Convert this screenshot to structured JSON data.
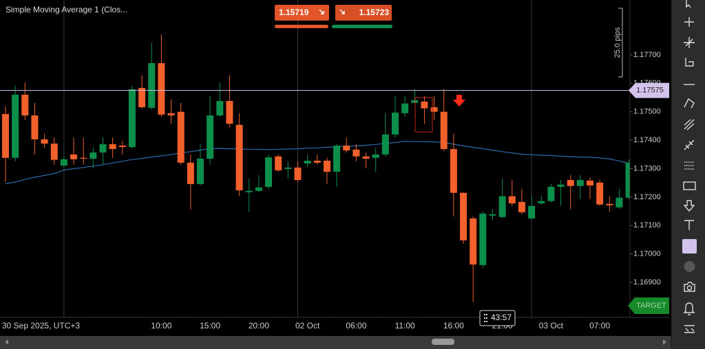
{
  "chart_data": {
    "type": "candlestick",
    "categories": [
      "30 Sep 2025, UTC+3",
      null,
      null,
      null,
      null,
      null,
      null,
      null,
      null,
      null,
      null,
      null,
      null,
      null,
      null,
      null,
      "10:00",
      null,
      null,
      null,
      null,
      "15:00",
      null,
      null,
      null,
      null,
      "20:00",
      null,
      null,
      null,
      null,
      "02 Oct",
      null,
      null,
      null,
      null,
      "06:00",
      null,
      null,
      null,
      null,
      "11:00",
      null,
      null,
      null,
      null,
      "16:00",
      null,
      null,
      null,
      null,
      "21:00",
      null,
      null,
      null,
      null,
      "03 Oct",
      null,
      null,
      null,
      null,
      "07:00",
      null,
      null,
      null
    ],
    "open": [
      1.17492,
      1.17338,
      1.1756,
      1.17487,
      1.17403,
      1.17388,
      1.17311,
      1.1735,
      1.17338,
      1.17335,
      1.17357,
      1.17386,
      1.17381,
      1.17376,
      1.17584,
      1.17514,
      1.17671,
      1.17495,
      1.175,
      1.17321,
      1.17246,
      1.17335,
      1.17487,
      1.17538,
      1.17454,
      1.17217,
      1.17222,
      1.17236,
      1.17343,
      1.17299,
      1.17304,
      1.17318,
      1.17328,
      1.17328,
      1.17289,
      1.17381,
      1.17367,
      1.17343,
      1.17338,
      1.1735,
      1.1742,
      1.17495,
      1.17531,
      1.17536,
      1.17516,
      1.175,
      1.17369,
      1.17215,
      1.17125,
      1.16961,
      1.17135,
      1.1713,
      1.17203,
      1.17183,
      1.17125,
      1.17178,
      1.17186,
      1.17236,
      1.1726,
      1.17239,
      1.17258,
      1.17251,
      1.17176,
      1.17164,
      1.17198
    ],
    "high": [
      1.17519,
      1.17591,
      1.17603,
      1.17531,
      1.17422,
      1.1741,
      1.17343,
      1.1741,
      1.1741,
      1.17374,
      1.1741,
      1.1741,
      1.17398,
      1.17591,
      1.17628,
      1.17743,
      1.17772,
      1.17543,
      1.17531,
      1.1735,
      1.17386,
      1.17555,
      1.17603,
      1.17628,
      1.17495,
      1.17265,
      1.17277,
      1.1735,
      1.1735,
      1.17326,
      1.17326,
      1.1735,
      1.1735,
      1.17338,
      1.17386,
      1.1741,
      1.17386,
      1.17357,
      1.17374,
      1.17495,
      1.17555,
      1.17555,
      1.17579,
      1.17555,
      1.17555,
      1.17579,
      1.17422,
      1.17217,
      1.17132,
      1.17149,
      1.17157,
      1.17265,
      1.1726,
      1.17229,
      1.17205,
      1.17205,
      1.17246,
      1.1726,
      1.17277,
      1.17277,
      1.1727,
      1.1726,
      1.17203,
      1.17229,
      1.17333
    ],
    "low": [
      1.17253,
      1.17326,
      1.17471,
      1.1735,
      1.17374,
      1.17314,
      1.17302,
      1.17314,
      1.17314,
      1.17302,
      1.17314,
      1.17338,
      1.1735,
      1.17372,
      1.17512,
      1.17507,
      1.17483,
      1.17458,
      1.17314,
      1.17157,
      1.17241,
      1.17314,
      1.17483,
      1.17446,
      1.17205,
      1.17149,
      1.17217,
      1.17229,
      1.17289,
      1.17265,
      1.17253,
      1.17306,
      1.17314,
      1.17246,
      1.17236,
      1.17357,
      1.17326,
      1.17302,
      1.17289,
      1.17343,
      1.1741,
      1.17483,
      1.17531,
      1.17458,
      1.17471,
      1.17362,
      1.17132,
      1.17036,
      1.16831,
      1.16951,
      1.1712,
      1.17125,
      1.17169,
      1.1714,
      1.1712,
      1.17174,
      1.17181,
      1.17169,
      1.17157,
      1.17193,
      1.17193,
      1.17169,
      1.17149,
      1.17159,
      1.17193
    ],
    "close": [
      1.17338,
      1.1756,
      1.17487,
      1.17403,
      1.17388,
      1.17331,
      1.17333,
      1.17333,
      1.17335,
      1.17357,
      1.17386,
      1.17369,
      1.17376,
      1.17579,
      1.17516,
      1.17671,
      1.1749,
      1.17487,
      1.17321,
      1.17246,
      1.17335,
      1.17487,
      1.17538,
      1.17458,
      1.17224,
      1.17222,
      1.17234,
      1.1734,
      1.17294,
      1.17304,
      1.1726,
      1.17328,
      1.17321,
      1.17289,
      1.17381,
      1.17364,
      1.17343,
      1.17335,
      1.1735,
      1.1742,
      1.17497,
      1.17529,
      1.17541,
      1.17512,
      1.175,
      1.17369,
      1.17215,
      1.17048,
      1.16963,
      1.17142,
      1.1714,
      1.17203,
      1.17178,
      1.17147,
      1.17169,
      1.17186,
      1.17236,
      1.17244,
      1.17239,
      1.1726,
      1.17241,
      1.17174,
      1.17171,
      1.17198,
      1.17321
    ],
    "up_color": "#0d8f4c",
    "down_color": "#f2602c",
    "overlays": [
      {
        "name": "Simple Moving Average 1 (Clos...",
        "color": "#2b6cb0",
        "values": [
          1.17247,
          1.17253,
          1.17262,
          1.1727,
          1.17276,
          1.17283,
          1.17295,
          1.173,
          1.17304,
          1.17309,
          1.17314,
          1.1732,
          1.17326,
          1.17332,
          1.17336,
          1.17341,
          1.17345,
          1.1735,
          1.17355,
          1.1736,
          1.17365,
          1.1737,
          1.17371,
          1.1737,
          1.17369,
          1.17368,
          1.17368,
          1.17367,
          1.17368,
          1.17369,
          1.1737,
          1.17372,
          1.17373,
          1.17375,
          1.17377,
          1.17378,
          1.1738,
          1.17382,
          1.17385,
          1.17389,
          1.17392,
          1.17396,
          1.17395,
          1.17395,
          1.17394,
          1.17392,
          1.17386,
          1.1738,
          1.17375,
          1.1737,
          1.17365,
          1.1736,
          1.17355,
          1.17351,
          1.17349,
          1.17347,
          1.17346,
          1.17344,
          1.17342,
          1.17341,
          1.1734,
          1.17338,
          1.17334,
          1.17327,
          1.17318
        ]
      }
    ],
    "ylim": [
      1.16777,
      1.17893
    ],
    "yticks": [
      {
        "value": 1.169,
        "label": "1.16900"
      },
      {
        "value": 1.17,
        "label": "1.17000"
      },
      {
        "value": 1.171,
        "label": "1.17100"
      },
      {
        "value": 1.172,
        "label": "1.17200"
      },
      {
        "value": 1.173,
        "label": "1.17300"
      },
      {
        "value": 1.174,
        "label": "1.17400"
      },
      {
        "value": 1.175,
        "label": "1.17500"
      },
      {
        "value": 1.176,
        "label": "1.17600"
      },
      {
        "value": 1.177,
        "label": "1.17700"
      }
    ],
    "current_price": 1.17575,
    "current_price_color": "#d2c2ec"
  },
  "ui": {
    "sell_price": "1.15719",
    "buy_price": "1.15723",
    "range_label": "25.0 pips",
    "target_label": "TARGET",
    "countdown": "43:57"
  }
}
